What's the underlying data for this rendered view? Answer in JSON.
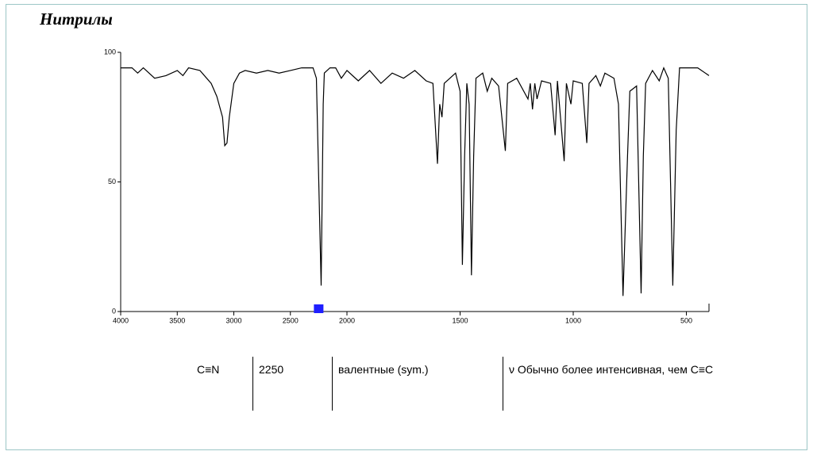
{
  "slide": {
    "title": "Нитрилы"
  },
  "chart_data": {
    "type": "line",
    "x": [
      4000,
      3900,
      3850,
      3800,
      3700,
      3600,
      3500,
      3450,
      3400,
      3300,
      3200,
      3150,
      3100,
      3080,
      3060,
      3040,
      3000,
      2950,
      2900,
      2800,
      2700,
      2600,
      2500,
      2400,
      2300,
      2270,
      2228,
      2210,
      2200,
      2150,
      2100,
      2050,
      2000,
      1950,
      1900,
      1850,
      1800,
      1750,
      1700,
      1650,
      1620,
      1600,
      1590,
      1580,
      1570,
      1520,
      1500,
      1490,
      1480,
      1470,
      1460,
      1450,
      1440,
      1430,
      1400,
      1380,
      1360,
      1330,
      1300,
      1290,
      1250,
      1200,
      1190,
      1180,
      1170,
      1160,
      1140,
      1100,
      1080,
      1070,
      1040,
      1030,
      1010,
      1000,
      960,
      940,
      930,
      900,
      880,
      860,
      820,
      800,
      780,
      760,
      750,
      720,
      700,
      690,
      680,
      650,
      620,
      600,
      580,
      560,
      545,
      530,
      500,
      450,
      400
    ],
    "series": [
      {
        "color": "#000000",
        "values": [
          94,
          94,
          92,
          94,
          90,
          91,
          93,
          91,
          94,
          93,
          88,
          83,
          75,
          64,
          65,
          75,
          88,
          92,
          93,
          92,
          93,
          92,
          93,
          94,
          94,
          90,
          10,
          80,
          92,
          94,
          94,
          90,
          93,
          89,
          93,
          88,
          92,
          90,
          93,
          89,
          88,
          57,
          80,
          75,
          88,
          92,
          85,
          18,
          60,
          88,
          80,
          14,
          60,
          90,
          92,
          85,
          90,
          87,
          62,
          88,
          90,
          82,
          88,
          78,
          88,
          82,
          89,
          88,
          68,
          89,
          58,
          88,
          80,
          89,
          88,
          65,
          88,
          91,
          87,
          92,
          90,
          80,
          6,
          60,
          85,
          87,
          7,
          60,
          88,
          93,
          89,
          94,
          90,
          10,
          70,
          94,
          94,
          94,
          91
        ]
      }
    ],
    "xlim": [
      4000,
      400
    ],
    "x_scale_change": {
      "at": 2000,
      "factor": 2
    },
    "xticks": [
      4000,
      3500,
      3000,
      2500,
      2000,
      1500,
      1000,
      500
    ],
    "ylim": [
      0,
      100
    ],
    "yticks": [
      0,
      50,
      100
    ],
    "marker": {
      "x": 2250,
      "color": "#1f1fff"
    }
  },
  "table": {
    "rows": [
      [
        "C≡N",
        "2250",
        "валентные (sym.)",
        "ν Обычно более интенсивная, чем C≡C"
      ]
    ]
  }
}
